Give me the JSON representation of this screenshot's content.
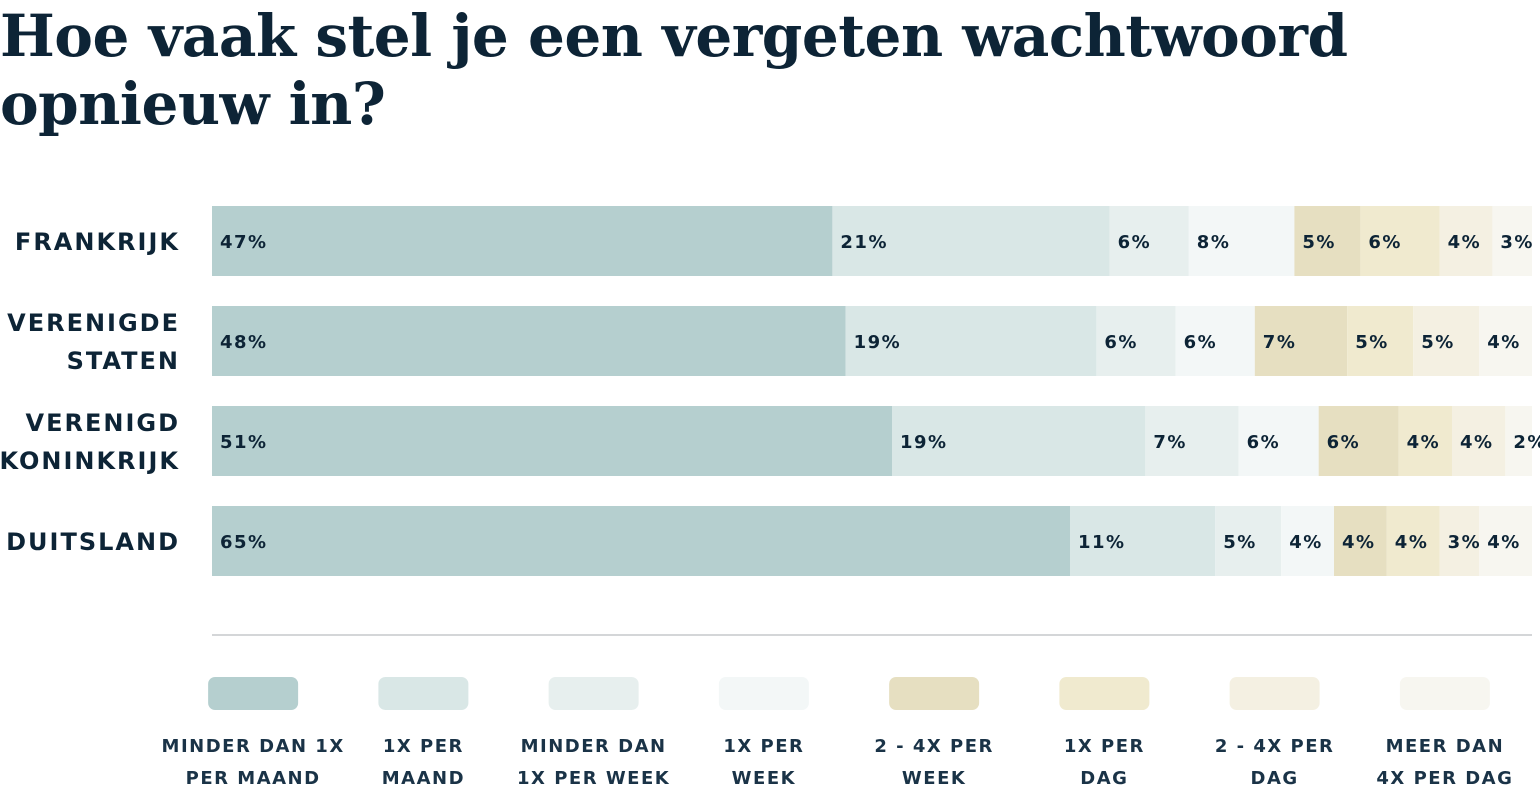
{
  "title": "Hoe vaak stel je een vergeten wachtwoord opnieuw in?",
  "chart_data": {
    "type": "bar",
    "orientation": "horizontal",
    "stacked": true,
    "title": "Hoe vaak stel je een vergeten wachtwoord opnieuw in?",
    "categories": [
      [
        "FRANKRIJK"
      ],
      [
        "VERENIGDE",
        "STATEN"
      ],
      [
        "VERENIGD",
        "KONINKRIJK"
      ],
      [
        "DUITSLAND"
      ]
    ],
    "series": [
      {
        "name": [
          "MINDER DAN 1X",
          "PER MAAND"
        ],
        "color": "#b5cfcf",
        "values": [
          47,
          48,
          51,
          65
        ]
      },
      {
        "name": [
          "1X PER",
          "MAAND"
        ],
        "color": "#d9e7e6",
        "values": [
          21,
          19,
          19,
          11
        ]
      },
      {
        "name": [
          "MINDER DAN",
          "1X PER WEEK"
        ],
        "color": "#e7efee",
        "values": [
          6,
          6,
          7,
          5
        ]
      },
      {
        "name": [
          "1X PER",
          "WEEK"
        ],
        "color": "#f3f7f7",
        "values": [
          8,
          6,
          6,
          4
        ]
      },
      {
        "name": [
          "2 - 4X PER",
          "WEEK"
        ],
        "color": "#e6dfc1",
        "values": [
          5,
          7,
          6,
          4
        ]
      },
      {
        "name": [
          "1X PER",
          "DAG"
        ],
        "color": "#f0eacf",
        "values": [
          6,
          5,
          4,
          4
        ]
      },
      {
        "name": [
          "2 - 4X PER",
          "DAG"
        ],
        "color": "#f4f0e2",
        "values": [
          4,
          5,
          4,
          3
        ]
      },
      {
        "name": [
          "MEER DAN",
          "4X PER DAG"
        ],
        "color": "#f7f6f0",
        "values": [
          3,
          4,
          2,
          4
        ]
      }
    ],
    "value_suffix": "%",
    "legend_position": "bottom",
    "grid": false
  }
}
